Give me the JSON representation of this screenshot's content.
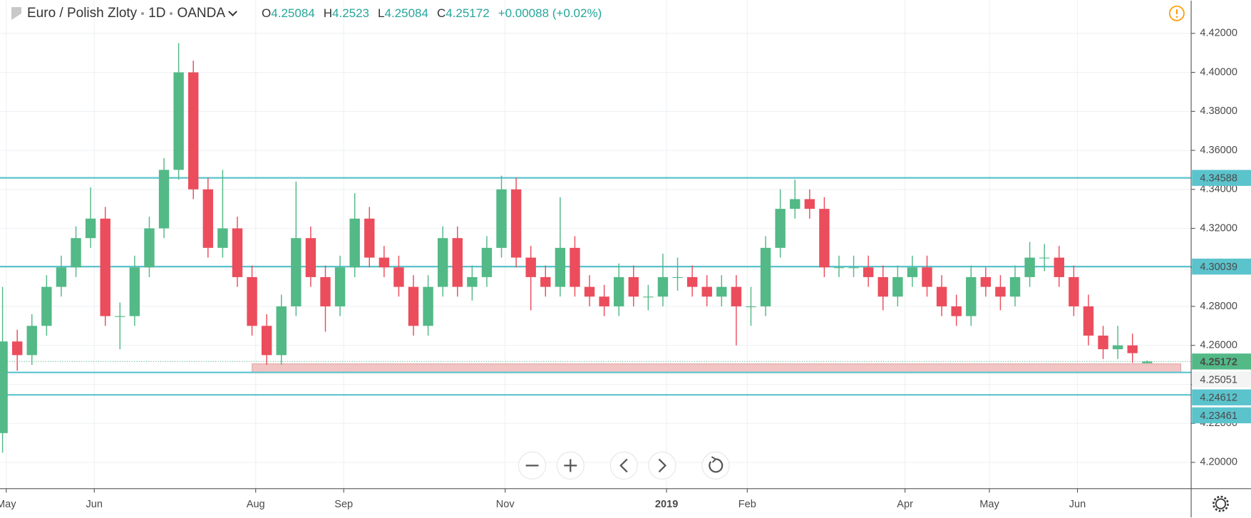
{
  "header": {
    "symbol": "Euro / Polish Zloty",
    "interval": "1D",
    "broker": "OANDA",
    "open_label": "O",
    "high_label": "H",
    "low_label": "L",
    "close_label": "C",
    "change": "+0.00088 (+0.02%)"
  },
  "chart_data": {
    "type": "candlestick",
    "up_color": "#53b987",
    "down_color": "#eb4d5c",
    "level_color": "#5bc3cc",
    "zone_color": "#f2c4c4",
    "grid": true,
    "x": [
      0,
      4,
      8,
      12,
      16,
      20,
      24,
      28,
      32,
      36,
      40,
      44,
      48,
      52,
      56,
      60,
      64,
      68,
      72,
      76,
      80,
      84,
      88,
      92,
      96,
      100,
      104,
      108,
      112,
      116,
      120,
      124,
      128,
      132,
      136,
      140,
      144,
      148,
      152,
      156,
      160,
      164,
      168,
      172,
      176,
      180,
      184,
      188,
      192,
      196,
      200,
      204,
      208,
      212,
      216,
      220,
      224,
      228,
      232,
      236,
      240,
      244,
      248,
      252,
      256,
      260,
      264,
      268,
      272,
      276,
      280,
      284,
      288,
      292,
      296,
      300,
      304,
      308,
      312
    ],
    "open": [
      4.215,
      4.262,
      4.255,
      4.27,
      4.29,
      4.3,
      4.315,
      4.325,
      4.275,
      4.275,
      4.3,
      4.32,
      4.35,
      4.4,
      4.34,
      4.31,
      4.32,
      4.295,
      4.27,
      4.255,
      4.28,
      4.315,
      4.295,
      4.28,
      4.3,
      4.325,
      4.305,
      4.3,
      4.29,
      4.27,
      4.29,
      4.315,
      4.29,
      4.295,
      4.31,
      4.34,
      4.305,
      4.295,
      4.29,
      4.31,
      4.29,
      4.285,
      4.28,
      4.295,
      4.285,
      4.285,
      4.295,
      4.295,
      4.29,
      4.285,
      4.29,
      4.28,
      4.28,
      4.31,
      4.33,
      4.335,
      4.33,
      4.3,
      4.3,
      4.3,
      4.295,
      4.285,
      4.295,
      4.3,
      4.29,
      4.28,
      4.275,
      4.295,
      4.29,
      4.285,
      4.295,
      4.305,
      4.305,
      4.295,
      4.28,
      4.265,
      4.258,
      4.26,
      4.25084
    ],
    "high": [
      4.29,
      4.268,
      4.276,
      4.296,
      4.306,
      4.321,
      4.341,
      4.331,
      4.282,
      4.306,
      4.326,
      4.356,
      4.415,
      4.406,
      4.346,
      4.35,
      4.326,
      4.301,
      4.276,
      4.286,
      4.344,
      4.321,
      4.301,
      4.306,
      4.338,
      4.331,
      4.311,
      4.306,
      4.296,
      4.296,
      4.321,
      4.321,
      4.301,
      4.316,
      4.347,
      4.346,
      4.311,
      4.301,
      4.336,
      4.316,
      4.296,
      4.291,
      4.302,
      4.301,
      4.291,
      4.307,
      4.305,
      4.301,
      4.296,
      4.296,
      4.296,
      4.29,
      4.316,
      4.34,
      4.345,
      4.34,
      4.336,
      4.306,
      4.306,
      4.306,
      4.301,
      4.301,
      4.306,
      4.306,
      4.296,
      4.286,
      4.301,
      4.3,
      4.296,
      4.301,
      4.313,
      4.312,
      4.311,
      4.301,
      4.286,
      4.27,
      4.27,
      4.266,
      4.2523
    ],
    "low": [
      4.205,
      4.247,
      4.25,
      4.265,
      4.285,
      4.295,
      4.31,
      4.27,
      4.258,
      4.27,
      4.295,
      4.315,
      4.345,
      4.335,
      4.305,
      4.305,
      4.29,
      4.265,
      4.25,
      4.25,
      4.275,
      4.29,
      4.267,
      4.275,
      4.295,
      4.3,
      4.295,
      4.285,
      4.265,
      4.265,
      4.285,
      4.285,
      4.283,
      4.29,
      4.305,
      4.3,
      4.278,
      4.285,
      4.285,
      4.285,
      4.28,
      4.275,
      4.275,
      4.28,
      4.278,
      4.28,
      4.288,
      4.285,
      4.28,
      4.28,
      4.26,
      4.27,
      4.275,
      4.305,
      4.325,
      4.325,
      4.295,
      4.295,
      4.295,
      4.29,
      4.278,
      4.28,
      4.29,
      4.285,
      4.275,
      4.27,
      4.27,
      4.285,
      4.278,
      4.28,
      4.29,
      4.298,
      4.29,
      4.275,
      4.26,
      4.253,
      4.253,
      4.251,
      4.25084
    ],
    "close": [
      4.262,
      4.255,
      4.27,
      4.29,
      4.3,
      4.315,
      4.325,
      4.275,
      4.275,
      4.3,
      4.32,
      4.35,
      4.4,
      4.34,
      4.31,
      4.32,
      4.295,
      4.27,
      4.255,
      4.28,
      4.315,
      4.295,
      4.28,
      4.3,
      4.325,
      4.305,
      4.3,
      4.29,
      4.27,
      4.29,
      4.315,
      4.29,
      4.295,
      4.31,
      4.34,
      4.305,
      4.295,
      4.29,
      4.31,
      4.29,
      4.285,
      4.28,
      4.295,
      4.285,
      4.285,
      4.295,
      4.295,
      4.29,
      4.285,
      4.29,
      4.28,
      4.28,
      4.31,
      4.33,
      4.335,
      4.33,
      4.3,
      4.3,
      4.3,
      4.295,
      4.285,
      4.295,
      4.3,
      4.29,
      4.28,
      4.275,
      4.295,
      4.29,
      4.285,
      4.295,
      4.305,
      4.305,
      4.295,
      4.28,
      4.265,
      4.258,
      4.26,
      4.256,
      4.25172
    ],
    "levels": [
      4.34588,
      4.30039,
      4.24612,
      4.23461
    ],
    "zone": {
      "top": 4.25051,
      "bottom": 4.24612
    },
    "xlim": [
      -0.7,
      324
    ],
    "xticks": [
      {
        "value": 1,
        "label": "May"
      },
      {
        "value": 25,
        "label": "Jun"
      },
      {
        "value": 69,
        "label": "Aug"
      },
      {
        "value": 93,
        "label": "Sep"
      },
      {
        "value": 137,
        "label": "Nov"
      },
      {
        "value": 181,
        "label": "2019"
      },
      {
        "value": 203,
        "label": "Feb"
      },
      {
        "value": 246,
        "label": "Apr"
      },
      {
        "value": 269,
        "label": "May"
      },
      {
        "value": 293,
        "label": "Jun"
      }
    ],
    "ylim": [
      4.1865,
      4.4368
    ],
    "yticks": [
      {
        "value": 4.2,
        "label": "4.20000"
      },
      {
        "value": 4.22,
        "label": "4.22000"
      },
      {
        "value": 4.24,
        "label": "4.24000"
      },
      {
        "value": 4.26,
        "label": "4.26000"
      },
      {
        "value": 4.28,
        "label": "4.28000"
      },
      {
        "value": 4.3,
        "label": "4.30000"
      },
      {
        "value": 4.32,
        "label": "4.32000"
      },
      {
        "value": 4.34,
        "label": "4.34000"
      },
      {
        "value": 4.36,
        "label": "4.36000"
      },
      {
        "value": 4.38,
        "label": "4.38000"
      },
      {
        "value": 4.4,
        "label": "4.40000"
      },
      {
        "value": 4.42,
        "label": "4.42000"
      }
    ]
  }
}
